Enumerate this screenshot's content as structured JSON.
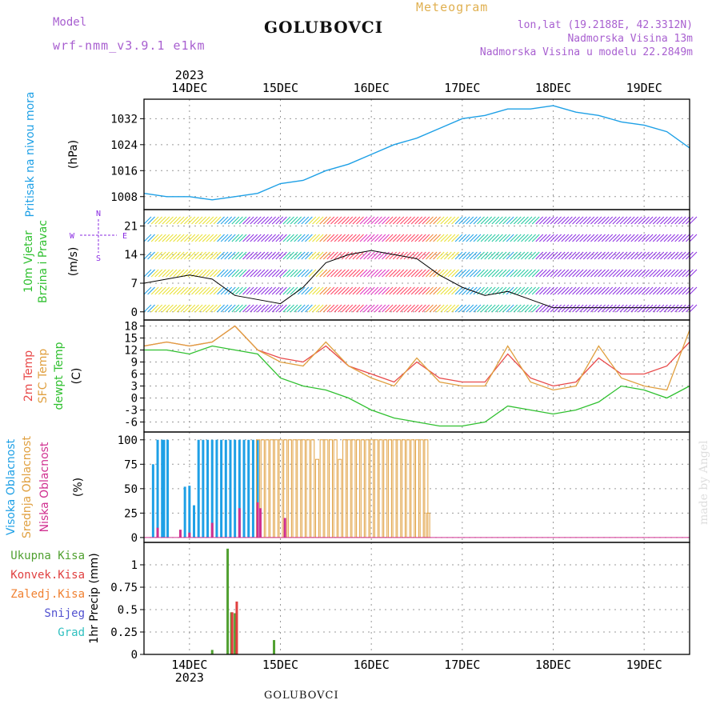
{
  "header": {
    "title": "GOLUBOVCI",
    "model_label": "Model",
    "model_name": "wrf-nmm_v3.9.1 e1km",
    "meteogram_label": "Meteogram",
    "lonlat": "lon,lat (19.2188E, 42.3312N)",
    "elevation": "Nadmorska Visina 13m",
    "model_elevation": "Nadmorska Visina u modelu 22.2849m"
  },
  "footer": {
    "title": "GOLUBOVCI",
    "credit": "made by Angel"
  },
  "colors": {
    "pressure": "#1ea0e6",
    "temp2m": "#e84a4a",
    "sfc": "#e0a040",
    "dewpt": "#30c030",
    "high_cloud": "#1ea0e6",
    "mid_cloud": "#e0a040",
    "low_cloud": "#d03090",
    "total_precip": "#50a030",
    "conv_precip": "#e04040",
    "freezing": "#f08030",
    "snow": "#5050d0",
    "graupel": "#30c0c0",
    "wind_purple": "#8a2be2"
  },
  "chart_data": [
    {
      "type": "line",
      "name": "pressure",
      "label": "Pritisak na nivou mora",
      "units": "(hPa)",
      "ylim": [
        1004,
        1038
      ],
      "yticks": [
        1008,
        1016,
        1024,
        1032
      ],
      "x": [
        13.5,
        13.75,
        14.0,
        14.25,
        14.5,
        14.75,
        15.0,
        15.25,
        15.5,
        15.75,
        16.0,
        16.25,
        16.5,
        16.75,
        17.0,
        17.25,
        17.5,
        17.75,
        18.0,
        18.25,
        18.5,
        18.75,
        19.0,
        19.25,
        19.5
      ],
      "values": [
        1009,
        1008,
        1008,
        1007,
        1008,
        1009,
        1012,
        1013,
        1016,
        1018,
        1021,
        1024,
        1026,
        1029,
        1032,
        1033,
        1035,
        1035,
        1036,
        1034,
        1033,
        1031,
        1030,
        1028,
        1023
      ]
    },
    {
      "type": "line",
      "name": "wind",
      "label": "10m Vjetar Brzina i Pravac",
      "units": "(m/s)",
      "ylim": [
        -2,
        25
      ],
      "yticks": [
        0,
        7,
        14,
        21
      ],
      "compass_labels": [
        "N",
        "W",
        "E",
        "S"
      ],
      "x": [
        13.5,
        13.75,
        14.0,
        14.25,
        14.5,
        14.75,
        15.0,
        15.25,
        15.5,
        15.75,
        16.0,
        16.25,
        16.5,
        16.75,
        17.0,
        17.25,
        17.5,
        17.75,
        18.0,
        18.25,
        18.5,
        18.75,
        19.0,
        19.25,
        19.5
      ],
      "values": [
        7,
        8,
        9,
        8,
        4,
        3,
        2,
        6,
        12,
        14,
        15,
        14,
        13,
        9,
        6,
        4,
        5,
        3,
        1,
        1,
        1,
        1,
        1,
        1,
        1
      ]
    },
    {
      "type": "line",
      "label_2m": "2m Temp",
      "label_sfc": "SFC Temp",
      "label_dew": "dewpt Temp",
      "units": "(C)",
      "ylim": [
        -8.5,
        19.5
      ],
      "yticks": [
        -6,
        -3,
        0,
        3,
        6,
        9,
        12,
        15,
        18
      ],
      "x": [
        13.5,
        13.75,
        14.0,
        14.25,
        14.5,
        14.75,
        15.0,
        15.25,
        15.5,
        15.75,
        16.0,
        16.25,
        16.5,
        16.75,
        17.0,
        17.25,
        17.5,
        17.75,
        18.0,
        18.25,
        18.5,
        18.75,
        19.0,
        19.25,
        19.5
      ],
      "series": [
        {
          "name": "2m Temp",
          "values": [
            13,
            14,
            13,
            14,
            18,
            12,
            10,
            9,
            13,
            8,
            6,
            4,
            9,
            5,
            4,
            4,
            11,
            5,
            3,
            4,
            10,
            6,
            6,
            8,
            14
          ]
        },
        {
          "name": "SFC Temp",
          "values": [
            13,
            14,
            13,
            14,
            18,
            12,
            9,
            8,
            14,
            8,
            5,
            3,
            10,
            4,
            3,
            3,
            13,
            4,
            2,
            3,
            13,
            5,
            3,
            2,
            17
          ]
        },
        {
          "name": "dewpt Temp",
          "values": [
            12,
            12,
            11,
            13,
            12,
            11,
            5,
            3,
            2,
            0,
            -3,
            -5,
            -6,
            -7,
            -7,
            -6,
            -2,
            -3,
            -4,
            -3,
            -1,
            3,
            2,
            0,
            3
          ]
        }
      ]
    },
    {
      "type": "bar",
      "label_high": "Visoka Oblacnost",
      "label_mid": "Srednja Oblacnost",
      "label_low": "Niska Oblacnost",
      "units": "(%)",
      "ylim": [
        -5,
        108
      ],
      "yticks": [
        0,
        25,
        50,
        75,
        100
      ],
      "series": [
        {
          "name": "Visoka Oblacnost",
          "x": [
            13.6,
            13.65,
            13.7,
            13.72,
            13.76,
            13.95,
            14.0,
            14.05,
            14.1,
            14.15,
            14.2,
            14.25,
            14.3,
            14.35,
            14.4,
            14.45,
            14.5,
            14.55,
            14.6,
            14.65,
            14.7,
            14.75
          ],
          "values": [
            75,
            100,
            100,
            100,
            100,
            52,
            53,
            33,
            100,
            100,
            100,
            100,
            100,
            100,
            100,
            100,
            100,
            100,
            100,
            100,
            100,
            100
          ]
        },
        {
          "name": "Srednja Oblacnost",
          "x": [
            14.75,
            14.8,
            14.85,
            14.9,
            14.95,
            15.0,
            15.05,
            15.1,
            15.15,
            15.2,
            15.25,
            15.3,
            15.35,
            15.4,
            15.45,
            15.5,
            15.55,
            15.6,
            15.65,
            15.7,
            15.75,
            15.8,
            15.85,
            15.9,
            15.95,
            16.0,
            16.05,
            16.1,
            16.15,
            16.2,
            16.25,
            16.3,
            16.35,
            16.4,
            16.45,
            16.5,
            16.55,
            16.6,
            16.62
          ],
          "values": [
            100,
            100,
            100,
            100,
            100,
            100,
            100,
            100,
            100,
            100,
            100,
            100,
            100,
            80,
            100,
            100,
            100,
            100,
            80,
            100,
            100,
            100,
            100,
            100,
            100,
            100,
            100,
            100,
            100,
            100,
            100,
            100,
            100,
            100,
            100,
            100,
            100,
            100,
            25
          ]
        },
        {
          "name": "Niska Oblacnost",
          "x": [
            13.65,
            13.9,
            14.0,
            14.25,
            14.55,
            14.75,
            14.78,
            15.05
          ],
          "values": [
            10,
            8,
            5,
            15,
            30,
            36,
            30,
            20
          ]
        }
      ]
    },
    {
      "type": "bar",
      "label_total": "Ukupna Kisa",
      "label_conv": "Konvek.Kisa",
      "label_freeze": "Zaledj.Kisa",
      "label_snow": "Snijeg",
      "label_graupel": "Grad",
      "units": "1hr Precip (mm)",
      "ylim": [
        0,
        1.25
      ],
      "yticks": [
        0,
        0.25,
        0.5,
        0.75,
        1
      ],
      "ytick_labels": [
        "0",
        "0.25",
        "0.5",
        "0.75",
        "1"
      ],
      "series": [
        {
          "name": "Ukupna Kisa",
          "x": [
            14.25,
            14.42,
            14.46,
            14.5,
            14.93
          ],
          "values": [
            0.05,
            1.18,
            0.47,
            0.46,
            0.16
          ]
        },
        {
          "name": "Konvek.Kisa",
          "x": [
            14.47,
            14.52
          ],
          "values": [
            0.47,
            0.59
          ]
        }
      ]
    }
  ],
  "time_axis": {
    "year": "2023",
    "day_labels": [
      "14DEC",
      "15DEC",
      "16DEC",
      "17DEC",
      "18DEC",
      "19DEC"
    ],
    "day_positions": [
      14.0,
      15.0,
      16.0,
      17.0,
      18.0,
      19.0
    ],
    "xlim": [
      13.5,
      19.5
    ]
  }
}
